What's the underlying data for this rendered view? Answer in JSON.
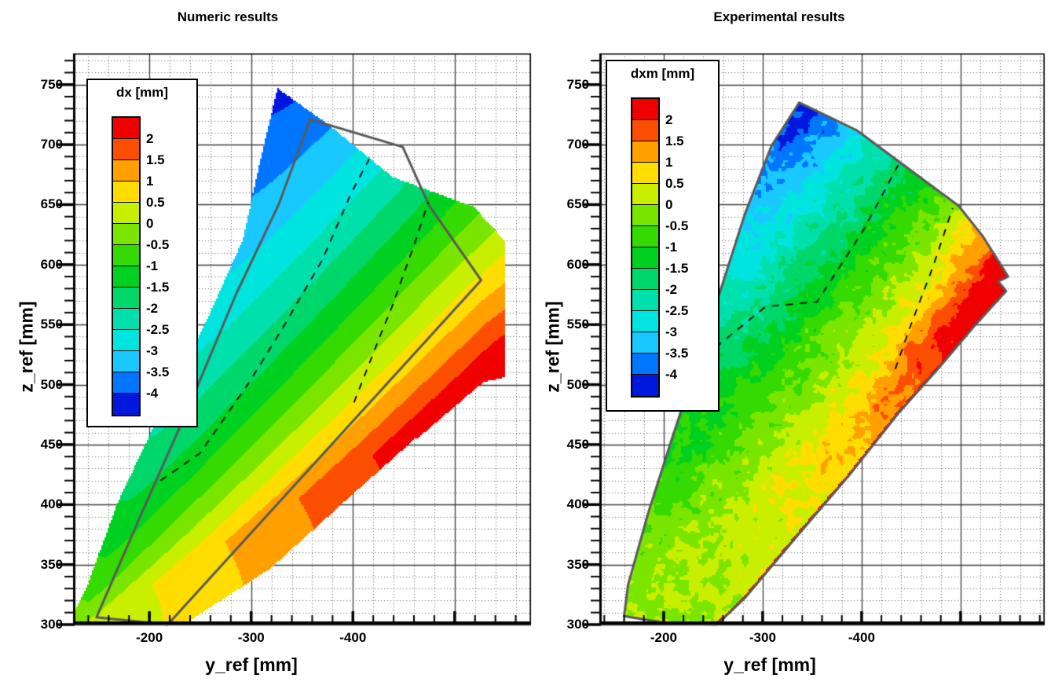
{
  "figure": {
    "background": "#ffffff"
  },
  "chart_data": [
    {
      "type": "heatmap",
      "variant": "filled_contour_blade",
      "title": "Numeric results",
      "xlabel": "y_ref [mm]",
      "ylabel": "z_ref [mm]",
      "legend_title": "dx [mm]",
      "legend_position": "upper-left-inside",
      "levels": [
        2,
        1.5,
        1,
        0.5,
        0,
        -0.5,
        -1,
        -1.5,
        -2,
        -2.5,
        -3,
        -3.5,
        -4
      ],
      "level_labels": [
        "2",
        "1.5",
        "1",
        "0.5",
        "0",
        "-0.5",
        "-1",
        "-1.5",
        "-2",
        "-2.5",
        "-3",
        "-3.5",
        "-4"
      ],
      "palette": [
        "#f10000",
        "#fb4e00",
        "#ff9f00",
        "#ffdd00",
        "#c8ee00",
        "#7ae600",
        "#35da00",
        "#00d121",
        "#00d76a",
        "#00e0ac",
        "#00e4e0",
        "#19c8ff",
        "#0076ff",
        "#0018dd"
      ],
      "x_ticks": [
        -200,
        -300,
        -400
      ],
      "x_tick_labels": [
        "-200",
        "-300",
        "-400"
      ],
      "y_ticks": [
        750,
        700,
        650,
        600,
        550,
        500,
        450,
        400,
        350,
        300
      ],
      "y_tick_labels": [
        "750",
        "700",
        "650",
        "600",
        "550",
        "500",
        "450",
        "400",
        "350",
        "300"
      ],
      "x_range": [
        -125,
        -575
      ],
      "y_range": [
        300,
        776
      ],
      "grid": {
        "x_minor_step": 20,
        "y_minor_step": 10,
        "x_major_step": 100,
        "y_major_step": 50,
        "minor_style": "dotted",
        "major_style": "solid"
      },
      "blade_outline": [
        [
          -125,
          300
        ],
        [
          -125,
          308
        ],
        [
          -138,
          330
        ],
        [
          -169,
          402
        ],
        [
          -211,
          477
        ],
        [
          -254,
          549
        ],
        [
          -292,
          621
        ],
        [
          -308,
          683
        ],
        [
          -326,
          747
        ],
        [
          -377,
          716
        ],
        [
          -439,
          673
        ],
        [
          -519,
          648
        ],
        [
          -549,
          620
        ],
        [
          -549,
          506
        ],
        [
          -528,
          502
        ],
        [
          -462,
          454
        ],
        [
          -393,
          402
        ],
        [
          -320,
          346
        ],
        [
          -236,
          300
        ]
      ],
      "overlay_outline": [
        [
          -148,
          306
        ],
        [
          -218,
          300
        ],
        [
          -526,
          587
        ],
        [
          -475,
          649
        ],
        [
          -449,
          698
        ],
        [
          -358,
          721
        ],
        [
          -327,
          650
        ],
        [
          -285,
          575
        ],
        [
          -238,
          480
        ],
        [
          -192,
          392
        ]
      ],
      "outline_on_blade": false,
      "dashed_lines": [
        [
          [
            -211,
            420
          ],
          [
            -250,
            443
          ],
          [
            -299,
            503
          ],
          [
            -333,
            550
          ],
          [
            -370,
            604
          ],
          [
            -398,
            659
          ],
          [
            -416,
            688
          ]
        ],
        [
          [
            -401,
            485
          ],
          [
            -426,
            539
          ],
          [
            -438,
            564
          ],
          [
            -460,
            616
          ],
          [
            -474,
            652
          ]
        ]
      ],
      "white_edge": [
        [
          -236,
          300
        ],
        [
          -320,
          346
        ],
        [
          -393,
          402
        ],
        [
          -462,
          454
        ]
      ],
      "field": {
        "root": [
          -130,
          297
        ],
        "tip": [
          -326,
          747
        ],
        "trail_vertex": [
          -549,
          506
        ],
        "a": -4.15,
        "b": 2.9,
        "tn": 1.25,
        "pn": 1.1,
        "tq": 1.6,
        "sa": 0.7,
        "sb": 1.0,
        "noise": 0
      }
    },
    {
      "type": "heatmap",
      "variant": "filled_contour_blade",
      "title": "Experimental results",
      "xlabel": "y_ref [mm]",
      "ylabel": "z_ref [mm]",
      "legend_title": "dxm [mm]",
      "legend_position": "upper-left-inside",
      "levels": [
        2,
        1.5,
        1,
        0.5,
        0,
        -0.5,
        -1,
        -1.5,
        -2,
        -2.5,
        -3,
        -3.5,
        -4
      ],
      "level_labels": [
        "2",
        "1.5",
        "1",
        "0.5",
        "0",
        "-0.5",
        "-1",
        "-1.5",
        "-2",
        "-2.5",
        "-3",
        "-3.5",
        "-4"
      ],
      "palette": [
        "#f10000",
        "#fb4e00",
        "#ff9f00",
        "#ffdd00",
        "#c8ee00",
        "#7ae600",
        "#35da00",
        "#00d121",
        "#00d76a",
        "#00e0ac",
        "#00e4e0",
        "#19c8ff",
        "#0076ff",
        "#0018dd"
      ],
      "x_ticks": [
        -200,
        -300,
        -400
      ],
      "x_tick_labels": [
        "-200",
        "-300",
        "-400"
      ],
      "y_ticks": [
        750,
        700,
        650,
        600,
        550,
        500,
        450,
        400,
        350,
        300
      ],
      "y_tick_labels": [
        "750",
        "700",
        "650",
        "600",
        "550",
        "500",
        "450",
        "400",
        "350",
        "300"
      ],
      "x_range": [
        -135,
        -585
      ],
      "y_range": [
        300,
        776
      ],
      "grid": {
        "x_minor_step": 20,
        "y_minor_step": 10,
        "x_major_step": 100,
        "y_major_step": 50,
        "minor_style": "dotted",
        "major_style": "solid"
      },
      "blade_outline": [
        [
          -160,
          307
        ],
        [
          -164,
          333
        ],
        [
          -184,
          392
        ],
        [
          -208,
          454
        ],
        [
          -232,
          514
        ],
        [
          -256,
          575
        ],
        [
          -282,
          642
        ],
        [
          -309,
          699
        ],
        [
          -337,
          735
        ],
        [
          -395,
          712
        ],
        [
          -498,
          649
        ],
        [
          -523,
          623
        ],
        [
          -548,
          590
        ],
        [
          -538,
          586
        ],
        [
          -546,
          578
        ],
        [
          -514,
          549
        ],
        [
          -478,
          514
        ],
        [
          -438,
          477
        ],
        [
          -387,
          424
        ],
        [
          -335,
          374
        ],
        [
          -283,
          323
        ],
        [
          -254,
          300
        ],
        [
          -204,
          301
        ]
      ],
      "overlay_outline": null,
      "outline_on_blade": true,
      "dashed_lines": [
        [
          [
            -224,
            490
          ],
          [
            -254,
            532
          ],
          [
            -303,
            565
          ],
          [
            -355,
            569
          ],
          [
            -402,
            629
          ],
          [
            -437,
            683
          ]
        ],
        [
          [
            -434,
            513
          ],
          [
            -449,
            548
          ],
          [
            -472,
            598
          ],
          [
            -492,
            647
          ]
        ]
      ],
      "red_edge": [
        [
          -204,
          301
        ],
        [
          -254,
          300
        ],
        [
          -283,
          323
        ],
        [
          -335,
          374
        ],
        [
          -387,
          424
        ],
        [
          -438,
          477
        ],
        [
          -478,
          514
        ],
        [
          -514,
          549
        ]
      ],
      "field": {
        "root": [
          -156,
          297
        ],
        "tip": [
          -337,
          735
        ],
        "trail_vertex": [
          -548,
          590
        ],
        "a": -4.3,
        "b": 3.4,
        "tn": 1.3,
        "pn": 2.2,
        "tq": 5,
        "sa": 1.35,
        "sb": 2.3,
        "noise": 0.52
      }
    }
  ]
}
